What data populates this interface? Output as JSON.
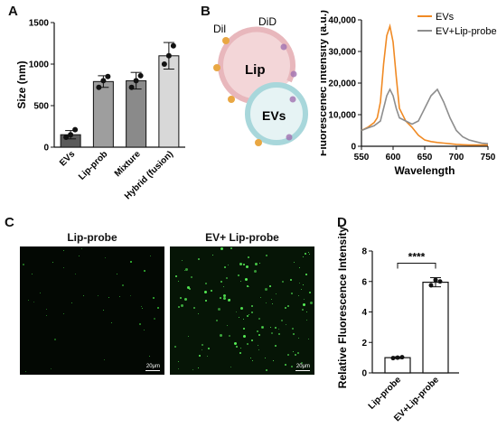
{
  "panels": {
    "a": "A",
    "b": "B",
    "c": "C",
    "d": "D"
  },
  "chart_data": [
    {
      "id": "A",
      "type": "bar",
      "ylabel": "Size (nm)",
      "ylim": [
        0,
        1500
      ],
      "yticks": [
        "0",
        "500",
        "1000",
        "1500"
      ],
      "categories": [
        "EVs",
        "Lip-prob",
        "Mixture",
        "Hybrid (fusion)"
      ],
      "values": [
        150,
        790,
        800,
        1100
      ],
      "errors": [
        50,
        70,
        100,
        160
      ],
      "points": [
        [
          120,
          150,
          210
        ],
        [
          720,
          800,
          850
        ],
        [
          720,
          800,
          860
        ],
        [
          1000,
          1100,
          1220
        ]
      ],
      "colors": [
        "#5a5a5a",
        "#9e9e9e",
        "#8a8a8a",
        "#d8d8d8"
      ]
    },
    {
      "id": "B-spectrum",
      "type": "line",
      "xlabel": "Wavelength",
      "ylabel": "Fluorescenec intensity (a.u.)",
      "xlim": [
        550,
        750
      ],
      "ylim": [
        0,
        40000
      ],
      "xticks": [
        "550",
        "600",
        "650",
        "700",
        "750"
      ],
      "yticks": [
        "0",
        "10,000",
        "20,000",
        "30,000",
        "40,000"
      ],
      "legend": "top-right",
      "series": [
        {
          "name": "EVs",
          "color": "#f08a24",
          "x": [
            550,
            560,
            570,
            575,
            580,
            585,
            590,
            595,
            600,
            605,
            610,
            620,
            630,
            640,
            650,
            660,
            670,
            680,
            690,
            700,
            710,
            720,
            730,
            740,
            750
          ],
          "y": [
            5000,
            6000,
            7500,
            9000,
            14000,
            26000,
            35000,
            38000,
            33000,
            22000,
            12000,
            8000,
            6000,
            3500,
            2000,
            1500,
            1200,
            1000,
            800,
            600,
            500,
            400,
            400,
            400,
            400
          ]
        },
        {
          "name": "EV+Lip-probe",
          "color": "#8e8e8e",
          "x": [
            550,
            560,
            570,
            580,
            585,
            590,
            595,
            600,
            605,
            610,
            620,
            630,
            640,
            650,
            660,
            670,
            680,
            690,
            700,
            710,
            720,
            730,
            740,
            750
          ],
          "y": [
            5000,
            5800,
            6500,
            8000,
            12000,
            16000,
            18000,
            16000,
            12000,
            9000,
            8000,
            7000,
            8000,
            12000,
            16000,
            18000,
            14000,
            9000,
            5000,
            3000,
            2000,
            1500,
            1000,
            800
          ]
        }
      ]
    },
    {
      "id": "D",
      "type": "bar",
      "ylabel": "Relative Fluorescence Intensity",
      "ylim": [
        0,
        8
      ],
      "yticks": [
        "0",
        "2",
        "4",
        "6",
        "8"
      ],
      "categories": [
        "Lip-probe",
        "EV+Lip-probe"
      ],
      "values": [
        1.0,
        5.95
      ],
      "errors": [
        0.06,
        0.3
      ],
      "points": [
        [
          0.97,
          1.0,
          1.03
        ],
        [
          5.75,
          6.1,
          6.0
        ]
      ],
      "significance": "****"
    }
  ],
  "diagram": {
    "dil": "Dil",
    "did": "DiD",
    "lip": "Lip",
    "evs": "EVs"
  },
  "micrographs": [
    {
      "title": "Lip-probe",
      "scale": "20μm"
    },
    {
      "title": "EV+ Lip-probe",
      "scale": "20μm"
    }
  ]
}
